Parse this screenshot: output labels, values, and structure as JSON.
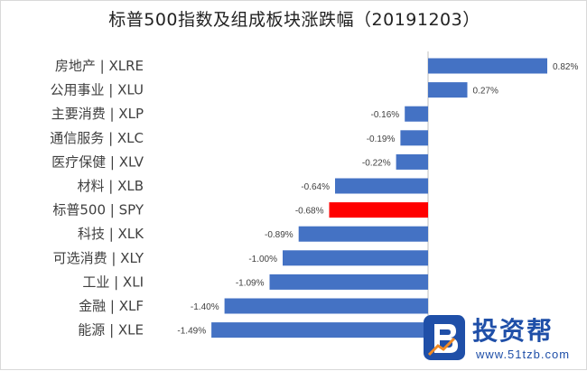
{
  "chart_data": {
    "type": "bar",
    "orientation": "horizontal",
    "title": "标普500指数及组成板块涨跌幅（20191203）",
    "categories": [
      "房地产 | XLRE",
      "公用事业 | XLU",
      "主要消费 | XLP",
      "通信服务 | XLC",
      "医疗保健 | XLV",
      "材料 | XLB",
      "标普500 | SPY",
      "科技 | XLK",
      "可选消费 | XLY",
      "工业 | XLI",
      "金融 | XLF",
      "能源 | XLE"
    ],
    "values": [
      0.82,
      0.27,
      -0.16,
      -0.19,
      -0.22,
      -0.64,
      -0.68,
      -0.89,
      -1.0,
      -1.09,
      -1.4,
      -1.49
    ],
    "value_labels": [
      "0.82%",
      "0.27%",
      "-0.16%",
      "-0.19%",
      "-0.22%",
      "-0.64%",
      "-0.68%",
      "-0.89%",
      "-1.00%",
      "-1.09%",
      "-1.40%",
      "-1.49%"
    ],
    "xlim": [
      -1.49,
      0.82
    ],
    "grid": false,
    "colors": {
      "default": "#4472c4",
      "highlight": "#ff0000"
    },
    "highlight_index": 6
  },
  "watermark": {
    "brand": "投资帮",
    "url": "www.51tzb.com",
    "icon": "logo-b-icon",
    "color": "#1f4fa8"
  }
}
